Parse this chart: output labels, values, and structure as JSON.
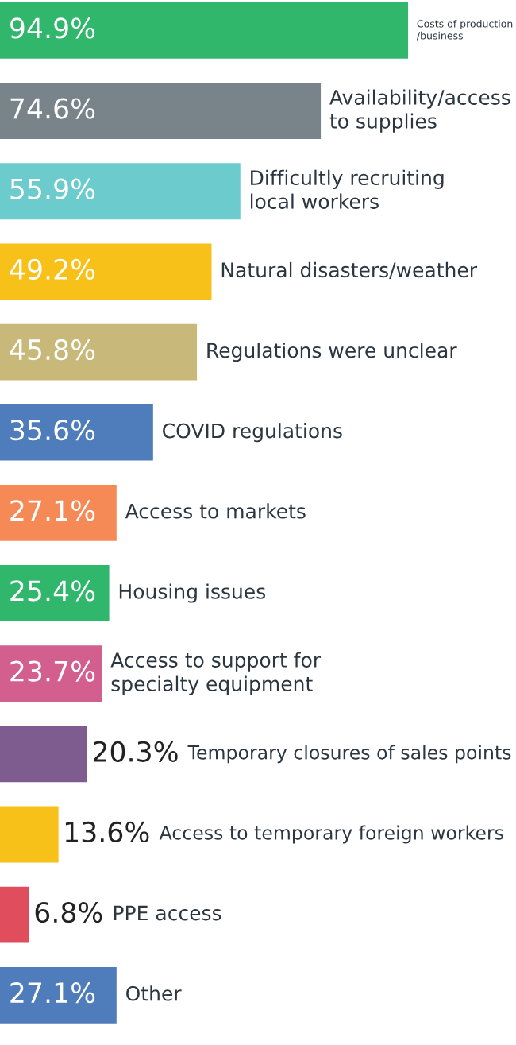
{
  "chart_data": {
    "type": "bar",
    "orientation": "horizontal",
    "categories": [
      "Costs of production\n/business",
      "Availability/access\nto supplies",
      "Difficultly recruiting\nlocal workers",
      "Natural disasters/weather",
      "Regulations were unclear",
      "COVID regulations",
      "Access to markets",
      "Housing issues",
      "Access to support for\nspecialty equipment",
      "Temporary closures of sales points",
      "Access to temporary foreign workers",
      "PPE access",
      "Other"
    ],
    "values": [
      94.9,
      74.6,
      55.9,
      49.2,
      45.8,
      35.6,
      27.1,
      25.4,
      23.7,
      20.3,
      13.6,
      6.8,
      27.1
    ],
    "value_labels": [
      "94.9%",
      "74.6%",
      "55.9%",
      "49.2%",
      "45.8%",
      "35.6%",
      "27.1%",
      "25.4%",
      "23.7%",
      "20.3%",
      "13.6%",
      "6.8%",
      "27.1%"
    ],
    "colors": [
      "#30b76c",
      "#79848a",
      "#6ccbcd",
      "#f8c11a",
      "#c8b97b",
      "#4f7cba",
      "#f68a56",
      "#30b76c",
      "#d35f8f",
      "#7e5c8f",
      "#f8c11a",
      "#e04d5c",
      "#4f7cba"
    ],
    "xlim": [
      0,
      120
    ]
  }
}
